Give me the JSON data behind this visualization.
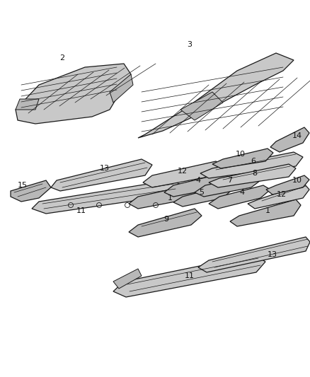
{
  "background_color": "#ffffff",
  "line_color": "#1a1a1a",
  "fill_light": "#c8c8c8",
  "fill_mid": "#b8b8b8",
  "fill_dark": "#a0a0a0",
  "figsize": [
    4.38,
    5.33
  ],
  "dpi": 100
}
